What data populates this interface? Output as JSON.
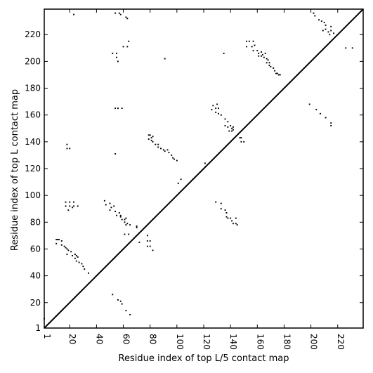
{
  "chart_data": {
    "type": "scatter",
    "title": "",
    "xlabel": "Residue index of top L/5 contact map",
    "ylabel": "Residue index of top L contact map",
    "xlim": [
      1,
      239
    ],
    "ylim": [
      1,
      239
    ],
    "xticks": [
      1,
      20,
      40,
      60,
      80,
      100,
      120,
      140,
      160,
      180,
      200,
      220
    ],
    "yticks": [
      1,
      20,
      40,
      60,
      80,
      100,
      120,
      140,
      160,
      180,
      200,
      220
    ],
    "grid": false,
    "diagonal": true,
    "marker_color": "#000000",
    "points": [
      [
        23,
        235
      ],
      [
        54,
        236
      ],
      [
        57,
        236
      ],
      [
        58,
        235
      ],
      [
        62,
        233
      ],
      [
        63,
        232
      ],
      [
        52,
        206
      ],
      [
        55,
        206
      ],
      [
        55,
        203
      ],
      [
        56,
        200
      ],
      [
        60,
        211
      ],
      [
        63,
        211
      ],
      [
        64,
        215
      ],
      [
        91,
        202
      ],
      [
        54,
        165
      ],
      [
        56,
        165
      ],
      [
        59,
        165
      ],
      [
        54,
        131
      ],
      [
        18,
        138
      ],
      [
        18,
        135
      ],
      [
        20,
        135
      ],
      [
        79,
        145
      ],
      [
        80,
        145
      ],
      [
        82,
        144
      ],
      [
        81,
        143
      ],
      [
        79,
        142
      ],
      [
        81,
        141
      ],
      [
        82,
        140
      ],
      [
        84,
        138
      ],
      [
        86,
        138
      ],
      [
        86,
        136
      ],
      [
        88,
        135
      ],
      [
        90,
        134
      ],
      [
        91,
        133
      ],
      [
        93,
        134
      ],
      [
        94,
        132
      ],
      [
        96,
        130
      ],
      [
        97,
        128
      ],
      [
        98,
        127
      ],
      [
        100,
        126
      ],
      [
        101,
        109
      ],
      [
        103,
        112
      ],
      [
        121,
        124
      ],
      [
        17,
        95
      ],
      [
        20,
        95
      ],
      [
        23,
        95
      ],
      [
        17,
        92
      ],
      [
        20,
        92
      ],
      [
        23,
        92
      ],
      [
        22,
        91
      ],
      [
        26,
        92
      ],
      [
        19,
        89
      ],
      [
        46,
        96
      ],
      [
        47,
        93
      ],
      [
        50,
        94
      ],
      [
        51,
        91
      ],
      [
        53,
        92
      ],
      [
        50,
        89
      ],
      [
        54,
        88
      ],
      [
        57,
        87
      ],
      [
        58,
        85
      ],
      [
        55,
        85
      ],
      [
        58,
        84
      ],
      [
        59,
        82
      ],
      [
        61,
        82
      ],
      [
        62,
        83
      ],
      [
        61,
        80
      ],
      [
        63,
        79
      ],
      [
        62,
        78
      ],
      [
        65,
        78
      ],
      [
        70,
        77
      ],
      [
        70,
        76
      ],
      [
        61,
        71
      ],
      [
        64,
        71
      ],
      [
        72,
        65
      ],
      [
        78,
        70
      ],
      [
        78,
        66
      ],
      [
        80,
        66
      ],
      [
        78,
        62
      ],
      [
        80,
        62
      ],
      [
        82,
        59
      ],
      [
        10,
        67
      ],
      [
        11,
        67
      ],
      [
        12,
        67
      ],
      [
        10,
        64
      ],
      [
        14,
        66
      ],
      [
        14,
        63
      ],
      [
        16,
        62
      ],
      [
        17,
        61
      ],
      [
        18,
        60
      ],
      [
        19,
        59
      ],
      [
        21,
        58
      ],
      [
        18,
        56
      ],
      [
        22,
        55
      ],
      [
        24,
        56
      ],
      [
        25,
        55
      ],
      [
        26,
        54
      ],
      [
        24,
        53
      ],
      [
        25,
        51
      ],
      [
        27,
        50
      ],
      [
        29,
        49
      ],
      [
        30,
        47
      ],
      [
        31,
        45
      ],
      [
        34,
        42
      ],
      [
        52,
        26
      ],
      [
        56,
        22
      ],
      [
        58,
        21
      ],
      [
        59,
        19
      ],
      [
        62,
        14
      ],
      [
        65,
        11
      ],
      [
        1,
        8
      ],
      [
        127,
        167
      ],
      [
        129,
        165
      ],
      [
        126,
        164
      ],
      [
        130,
        168
      ],
      [
        131,
        165
      ],
      [
        129,
        162
      ],
      [
        131,
        161
      ],
      [
        133,
        160
      ],
      [
        136,
        157
      ],
      [
        138,
        155
      ],
      [
        136,
        152
      ],
      [
        138,
        151
      ],
      [
        140,
        152
      ],
      [
        141,
        150
      ],
      [
        142,
        151
      ],
      [
        142,
        149
      ],
      [
        141,
        148
      ],
      [
        139,
        148
      ],
      [
        147,
        143
      ],
      [
        148,
        140
      ],
      [
        150,
        140
      ],
      [
        148,
        143
      ],
      [
        129,
        95
      ],
      [
        133,
        94
      ],
      [
        133,
        90
      ],
      [
        136,
        89
      ],
      [
        137,
        87
      ],
      [
        137,
        84
      ],
      [
        138,
        83
      ],
      [
        140,
        83
      ],
      [
        141,
        81
      ],
      [
        142,
        79
      ],
      [
        144,
        79
      ],
      [
        145,
        78
      ],
      [
        144,
        83
      ],
      [
        152,
        215
      ],
      [
        154,
        215
      ],
      [
        152,
        211
      ],
      [
        156,
        211
      ],
      [
        157,
        215
      ],
      [
        158,
        212
      ],
      [
        157,
        208
      ],
      [
        160,
        208
      ],
      [
        161,
        206
      ],
      [
        161,
        204
      ],
      [
        163,
        204
      ],
      [
        163,
        207
      ],
      [
        164,
        205
      ],
      [
        166,
        206
      ],
      [
        165,
        203
      ],
      [
        167,
        202
      ],
      [
        167,
        199
      ],
      [
        168,
        201
      ],
      [
        169,
        199
      ],
      [
        169,
        197
      ],
      [
        170,
        196
      ],
      [
        172,
        195
      ],
      [
        173,
        193
      ],
      [
        174,
        191
      ],
      [
        175,
        191
      ],
      [
        176,
        190
      ],
      [
        177,
        190
      ],
      [
        135,
        206
      ],
      [
        202,
        236
      ],
      [
        203,
        234
      ],
      [
        206,
        231
      ],
      [
        208,
        230
      ],
      [
        210,
        229
      ],
      [
        211,
        227
      ],
      [
        211,
        224
      ],
      [
        213,
        222
      ],
      [
        215,
        223
      ],
      [
        214,
        220
      ],
      [
        215,
        226
      ],
      [
        217,
        221
      ],
      [
        209,
        223
      ],
      [
        226,
        210
      ],
      [
        231,
        210
      ],
      [
        199,
        168
      ],
      [
        204,
        164
      ],
      [
        207,
        161
      ],
      [
        211,
        158
      ],
      [
        215,
        154
      ],
      [
        215,
        152
      ]
    ]
  }
}
